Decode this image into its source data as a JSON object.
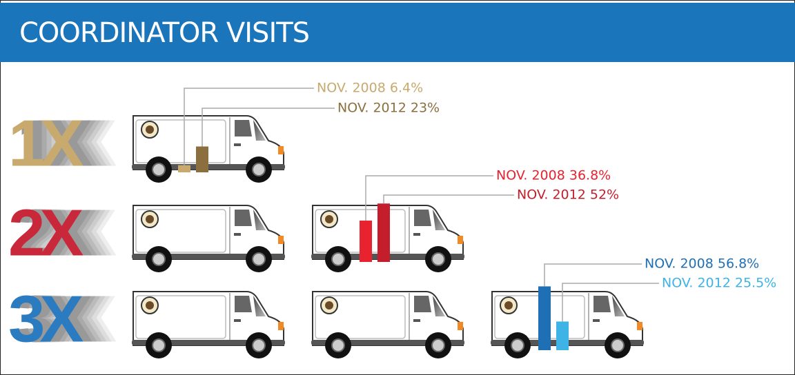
{
  "title": "COORDINATOR VISITS",
  "groups": [
    {
      "label": "1X",
      "color": "#c8a96e",
      "values": [
        6.4,
        23
      ],
      "value_labels": [
        "NOV. 2008 6.4%",
        "NOV. 2012 23%"
      ],
      "colors": [
        "#c8a96e",
        "#8b6f3e"
      ]
    },
    {
      "label": "2X",
      "color": "#c8283a",
      "values": [
        36.8,
        52
      ],
      "value_labels": [
        "NOV. 2008 36.8%",
        "NOV. 2012 52%"
      ],
      "colors": [
        "#e8222f",
        "#c41e2d"
      ]
    },
    {
      "label": "3X",
      "color": "#2a7bbf",
      "values": [
        56.8,
        25.5
      ],
      "value_labels": [
        "NOV. 2008 56.8%",
        "NOV. 2012 25.5%"
      ],
      "colors": [
        "#1f6fb5",
        "#3db4e5"
      ]
    }
  ]
}
